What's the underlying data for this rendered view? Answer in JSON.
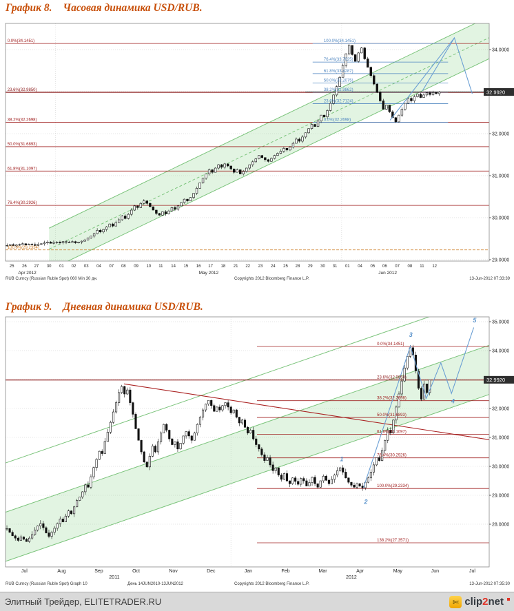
{
  "footer": {
    "site": "Элитный Трейдер, ELITETRADER.RU",
    "logo": {
      "p1": "clip",
      "p2": "2",
      "p3": "net"
    }
  },
  "chart_data": [
    {
      "type": "candlestick",
      "title_prefix": "График 8.",
      "title": "Часовая динамика USD/RUB.",
      "footer": {
        "left": "RUB Curncy (Russian Ruble Spot) 060 Min 30 дн.",
        "center": "Copyrights 2012 Bloomberg Finance L.P.",
        "right": "13-Jun-2012 07:33:39"
      },
      "ylim": [
        28.97,
        34.62
      ],
      "price_badge": {
        "label": "32.9920",
        "value": 32.992
      },
      "y_ticks": [
        {
          "v": 34,
          "label": "34.0000"
        },
        {
          "v": 33,
          "label": "33.0000"
        },
        {
          "v": 32,
          "label": "32.0000"
        },
        {
          "v": 31,
          "label": "31.0000"
        },
        {
          "v": 30,
          "label": "30.0000"
        },
        {
          "v": 29,
          "label": "29.0000"
        }
      ],
      "x_labels": [
        {
          "t": "25",
          "f": 0.013
        },
        {
          "t": "26",
          "f": 0.039
        },
        {
          "t": "27",
          "f": 0.064
        },
        {
          "t": "30",
          "f": 0.09
        },
        {
          "t": "01",
          "f": 0.116
        },
        {
          "t": "02",
          "f": 0.141
        },
        {
          "t": "03",
          "f": 0.167
        },
        {
          "t": "04",
          "f": 0.193
        },
        {
          "t": "07",
          "f": 0.219
        },
        {
          "t": "08",
          "f": 0.244
        },
        {
          "t": "09",
          "f": 0.27
        },
        {
          "t": "10",
          "f": 0.296
        },
        {
          "t": "11",
          "f": 0.321
        },
        {
          "t": "14",
          "f": 0.347
        },
        {
          "t": "15",
          "f": 0.373
        },
        {
          "t": "16",
          "f": 0.399
        },
        {
          "t": "17",
          "f": 0.424
        },
        {
          "t": "18",
          "f": 0.45
        },
        {
          "t": "21",
          "f": 0.476
        },
        {
          "t": "22",
          "f": 0.501
        },
        {
          "t": "23",
          "f": 0.527
        },
        {
          "t": "24",
          "f": 0.553
        },
        {
          "t": "25",
          "f": 0.579
        },
        {
          "t": "28",
          "f": 0.604
        },
        {
          "t": "29",
          "f": 0.63
        },
        {
          "t": "30",
          "f": 0.656
        },
        {
          "t": "31",
          "f": 0.681
        },
        {
          "t": "01",
          "f": 0.707
        },
        {
          "t": "04",
          "f": 0.733
        },
        {
          "t": "05",
          "f": 0.759
        },
        {
          "t": "06",
          "f": 0.784
        },
        {
          "t": "07",
          "f": 0.81
        },
        {
          "t": "08",
          "f": 0.836
        },
        {
          "t": "11",
          "f": 0.861
        },
        {
          "t": "12",
          "f": 0.887
        }
      ],
      "x_labels2": [
        {
          "t": "Apr 2012",
          "f": 0.045
        },
        {
          "t": "May 2012",
          "f": 0.42
        },
        {
          "t": "Jun 2012",
          "f": 0.79
        }
      ],
      "v_grid": [
        0.103,
        0.695
      ],
      "fib_levels": [
        {
          "label": "0.0%(34.1451)",
          "value": 34.1451,
          "f0": 0,
          "f1": 1,
          "color": "#a02020",
          "lx": 0.004
        },
        {
          "label": "23.6%(32.9850)",
          "value": 32.985,
          "f0": 0,
          "f1": 1,
          "color": "#8b1a1a",
          "w": 1.3,
          "lx": 0.004
        },
        {
          "label": "38.2%(32.2698)",
          "value": 32.2698,
          "f0": 0,
          "f1": 1,
          "color": "#a02020",
          "lx": 0.004
        },
        {
          "label": "50.0%(31.6893)",
          "value": 31.6893,
          "f0": 0,
          "f1": 1,
          "color": "#a02020",
          "lx": 0.004
        },
        {
          "label": "61.8%(31.1097)",
          "value": 31.1097,
          "f0": 0,
          "f1": 1,
          "color": "#a02020",
          "lx": 0.004
        },
        {
          "label": "76.4%(30.2926)",
          "value": 30.2926,
          "f0": 0,
          "f1": 1,
          "color": "#a02020",
          "lx": 0.004
        },
        {
          "label": "100.0%(29.2334)",
          "value": 29.2334,
          "f0": 0,
          "f1": 1,
          "color": "#cc7a22",
          "dash": "4,2",
          "lx": 0.004
        }
      ],
      "blue_fib_levels": [
        {
          "label": "100.0%(34.1451)",
          "value": 34.1451,
          "f0": 0.635,
          "f1": 0.915,
          "lx": 0.658
        },
        {
          "label": "76.4%(33.7025)",
          "value": 33.7025,
          "f0": 0.635,
          "f1": 0.915,
          "lx": 0.658
        },
        {
          "label": "61.8%(33.4287)",
          "value": 33.4287,
          "f0": 0.635,
          "f1": 0.915,
          "lx": 0.658
        },
        {
          "label": "50.0%(33.2075)",
          "value": 33.2075,
          "f0": 0.635,
          "f1": 0.915,
          "lx": 0.658
        },
        {
          "label": "38.2%(32.9862)",
          "value": 32.9862,
          "f0": 0.635,
          "f1": 0.915,
          "lx": 0.658
        },
        {
          "label": "23.6%(32.7124)",
          "value": 32.7124,
          "f0": 0.635,
          "f1": 0.915,
          "lx": 0.658
        },
        {
          "label": "0.0%(32.2698)",
          "value": 32.2698,
          "f0": 0.635,
          "f1": 0.915,
          "lx": 0.658
        }
      ],
      "channel": {
        "fill": [
          [
            [
              0.09,
              28.75
            ],
            [
              1.03,
              33.95
            ]
          ],
          [
            [
              0.09,
              29.75
            ],
            [
              1.03,
              34.95
            ]
          ]
        ],
        "lines": [
          [
            [
              0.09,
              28.75
            ],
            [
              1.03,
              33.95
            ]
          ],
          [
            [
              0.09,
              29.75
            ],
            [
              1.03,
              34.95
            ]
          ]
        ],
        "dashed": [
          [
            [
              0.09,
              29.25
            ],
            [
              1.03,
              34.45
            ]
          ]
        ]
      },
      "last_price_line": {
        "f0": 0.62,
        "value": 32.992
      },
      "projections": [
        [
          [
            0.795,
            32.32
          ],
          [
            0.928,
            34.28
          ]
        ],
        [
          [
            0.862,
            33.02
          ],
          [
            0.928,
            34.28
          ],
          [
            0.965,
            32.95
          ]
        ]
      ],
      "wave_labels": [],
      "candles": {
        "span": [
          0,
          0.9
        ],
        "wick": 0.05,
        "closes": [
          29.34,
          29.36,
          29.33,
          29.35,
          29.36,
          29.38,
          29.35,
          29.37,
          29.36,
          29.34,
          29.37,
          29.38,
          29.4,
          29.42,
          29.39,
          29.41,
          29.42,
          29.4,
          29.43,
          29.42,
          29.41,
          29.43,
          29.4,
          29.42,
          29.44,
          29.47,
          29.52,
          29.56,
          29.62,
          29.7,
          29.66,
          29.72,
          29.78,
          29.85,
          29.8,
          29.88,
          29.95,
          30.04,
          29.98,
          30.08,
          30.18,
          30.28,
          30.24,
          30.34,
          30.4,
          30.34,
          30.26,
          30.18,
          30.1,
          30.06,
          30.14,
          30.09,
          30.16,
          30.24,
          30.2,
          30.28,
          30.36,
          30.44,
          30.4,
          30.48,
          30.58,
          30.7,
          30.83,
          30.94,
          31.04,
          31.14,
          31.08,
          31.18,
          31.26,
          31.2,
          31.28,
          31.23,
          31.16,
          31.08,
          31.14,
          31.04,
          31.1,
          31.18,
          31.26,
          31.33,
          31.4,
          31.48,
          31.43,
          31.38,
          31.34,
          31.41,
          31.48,
          31.53,
          31.58,
          31.65,
          31.61,
          31.68,
          31.77,
          31.87,
          31.82,
          31.92,
          32.02,
          32.12,
          32.22,
          32.17,
          32.3,
          32.44,
          32.4,
          32.55,
          32.72,
          32.92,
          33.12,
          33.34,
          33.62,
          33.9,
          34.1,
          33.88,
          33.72,
          33.92,
          34.04,
          33.78,
          33.58,
          33.38,
          33.18,
          32.98,
          32.78,
          32.58,
          32.68,
          32.52,
          32.38,
          32.28,
          32.44,
          32.58,
          32.72,
          32.84,
          32.78,
          32.88,
          32.94,
          32.86,
          32.92,
          32.97,
          32.93,
          32.98,
          32.95,
          32.99
        ]
      }
    },
    {
      "type": "candlestick",
      "title_prefix": "График 9.",
      "title": "Дневная динамика USD/RUB.",
      "footer": {
        "left": "RUB Curncy (Russian Ruble Spot) Graph 10",
        "period": "День 14JUN2010-13JUN2012",
        "center": "Copyrights 2012 Bloomberg Finance L.P.",
        "right": "13-Jun-2012 07:35:30"
      },
      "ylim": [
        26.52,
        35.17
      ],
      "price_badge": {
        "label": "32.9920",
        "value": 32.992
      },
      "y_ticks": [
        {
          "v": 35,
          "label": "35.0000"
        },
        {
          "v": 34,
          "label": "34.0000"
        },
        {
          "v": 33,
          "label": "33.0000"
        },
        {
          "v": 32,
          "label": "32.0000"
        },
        {
          "v": 31,
          "label": "31.0000"
        },
        {
          "v": 30,
          "label": "30.0000"
        },
        {
          "v": 29,
          "label": "29.0000"
        },
        {
          "v": 28,
          "label": "28.0000"
        }
      ],
      "x_labels": [
        {
          "t": "Jul",
          "f": 0.039
        },
        {
          "t": "Aug",
          "f": 0.116
        },
        {
          "t": "Sep",
          "f": 0.193
        },
        {
          "t": "Oct",
          "f": 0.27
        },
        {
          "t": "Nov",
          "f": 0.347
        },
        {
          "t": "Dec",
          "f": 0.425
        },
        {
          "t": "Jan",
          "f": 0.502
        },
        {
          "t": "Feb",
          "f": 0.579
        },
        {
          "t": "Mar",
          "f": 0.656
        },
        {
          "t": "Apr",
          "f": 0.733
        },
        {
          "t": "May",
          "f": 0.811
        },
        {
          "t": "Jun",
          "f": 0.888
        },
        {
          "t": "Jul",
          "f": 0.965
        }
      ],
      "x_labels2": [
        {
          "t": "2011",
          "f": 0.225
        },
        {
          "t": "2012",
          "f": 0.715
        }
      ],
      "v_grid": [
        0.466
      ],
      "fib_levels": [
        {
          "label": "0.0%(34.1451)",
          "value": 34.1451,
          "f0": 0.52,
          "f1": 1,
          "color": "#a02020",
          "lx": 0.768
        },
        {
          "label": "23.6%(32.9850)",
          "value": 32.985,
          "f0": 0,
          "f1": 1,
          "color": "#8b1a1a",
          "w": 1.3,
          "lx": 0.768
        },
        {
          "label": "38.2%(32.2698)",
          "value": 32.2698,
          "f0": 0.52,
          "f1": 1,
          "color": "#a02020",
          "lx": 0.768
        },
        {
          "label": "50.0%(31.6893)",
          "value": 31.6893,
          "f0": 0.52,
          "f1": 1,
          "color": "#a02020",
          "lx": 0.768
        },
        {
          "label": "61.8%(31.1097)",
          "value": 31.1097,
          "f0": 0.52,
          "f1": 1,
          "color": "#a02020",
          "lx": 0.768
        },
        {
          "label": "76.4%(30.2926)",
          "value": 30.2926,
          "f0": 0.52,
          "f1": 1,
          "color": "#a02020",
          "lx": 0.768
        },
        {
          "label": "100.0%(29.2334)",
          "value": 29.2334,
          "f0": 0.52,
          "f1": 1,
          "color": "#a02020",
          "lx": 0.768
        },
        {
          "label": "138.2%(27.3571)",
          "value": 27.3571,
          "f0": 0.52,
          "f1": 1,
          "color": "#a02020",
          "lx": 0.768
        }
      ],
      "blue_fib_levels": [],
      "channel": {
        "fill": [
          [
            [
              -0.02,
              26.6
            ],
            [
              1.02,
              32.6
            ]
          ],
          [
            [
              -0.02,
              28.3
            ],
            [
              1.02,
              34.3
            ]
          ]
        ],
        "lines": [
          [
            [
              -0.02,
              26.6
            ],
            [
              1.02,
              32.6
            ]
          ],
          [
            [
              -0.02,
              28.3
            ],
            [
              1.02,
              34.3
            ]
          ],
          [
            [
              -0.02,
              30.0
            ],
            [
              1.02,
              36.0
            ]
          ]
        ],
        "dashed": []
      },
      "trendlines": [
        [
          [
            0.245,
            32.85
          ],
          [
            1.02,
            30.87
          ]
        ]
      ],
      "projections": [
        [
          [
            0.74,
            29.26
          ],
          [
            0.837,
            34.15
          ],
          [
            0.87,
            32.35
          ],
          [
            0.9,
            33.58
          ],
          [
            0.922,
            32.52
          ],
          [
            0.968,
            34.8
          ]
        ]
      ],
      "wave_labels": [
        {
          "t": "1",
          "f": 0.695,
          "p": 30.18
        },
        {
          "t": "2",
          "f": 0.745,
          "p": 28.7
        },
        {
          "t": "3",
          "f": 0.838,
          "p": 34.48
        },
        {
          "t": "4",
          "f": 0.925,
          "p": 32.18
        },
        {
          "t": "5",
          "f": 0.97,
          "p": 34.98
        }
      ],
      "candles": {
        "span": [
          0,
          0.88
        ],
        "wick": 0.12,
        "closes": [
          27.85,
          27.72,
          27.6,
          27.52,
          27.44,
          27.56,
          27.48,
          27.4,
          27.52,
          27.64,
          27.8,
          27.94,
          28.02,
          27.88,
          27.7,
          27.58,
          27.72,
          27.86,
          28.02,
          28.18,
          28.08,
          28.28,
          28.46,
          28.36,
          28.6,
          28.82,
          28.94,
          29.12,
          29.36,
          29.28,
          29.64,
          29.96,
          30.24,
          30.52,
          30.44,
          30.86,
          31.18,
          31.52,
          31.88,
          32.2,
          32.55,
          32.76,
          32.5,
          32.64,
          32.2,
          31.8,
          31.3,
          30.9,
          30.5,
          30.15,
          29.98,
          30.35,
          30.7,
          30.5,
          30.85,
          31.15,
          31.45,
          31.25,
          30.95,
          30.75,
          30.85,
          30.6,
          30.8,
          31.05,
          31.2,
          31.05,
          30.9,
          31.15,
          31.45,
          31.7,
          31.95,
          32.15,
          32.28,
          32.1,
          31.9,
          32.05,
          31.95,
          32.1,
          32.2,
          32.05,
          31.85,
          31.95,
          31.7,
          31.5,
          31.6,
          31.35,
          31.15,
          31.25,
          30.95,
          30.75,
          30.6,
          30.4,
          30.2,
          30.3,
          30.05,
          29.85,
          29.95,
          29.7,
          29.55,
          29.75,
          29.5,
          29.4,
          29.6,
          29.48,
          29.38,
          29.58,
          29.5,
          29.32,
          29.44,
          29.62,
          29.4,
          29.28,
          29.5,
          29.66,
          29.52,
          29.4,
          29.55,
          29.7,
          29.85,
          29.95,
          29.8,
          29.6,
          29.45,
          29.35,
          29.28,
          29.4,
          29.32,
          29.26,
          29.45,
          29.6,
          29.8,
          30.05,
          30.3,
          30.2,
          30.55,
          30.9,
          31.25,
          31.15,
          31.6,
          32.05,
          32.5,
          32.95,
          33.4,
          33.8,
          34.1,
          33.85,
          33.3,
          32.7,
          32.32,
          32.85,
          32.55,
          32.99
        ]
      }
    }
  ]
}
